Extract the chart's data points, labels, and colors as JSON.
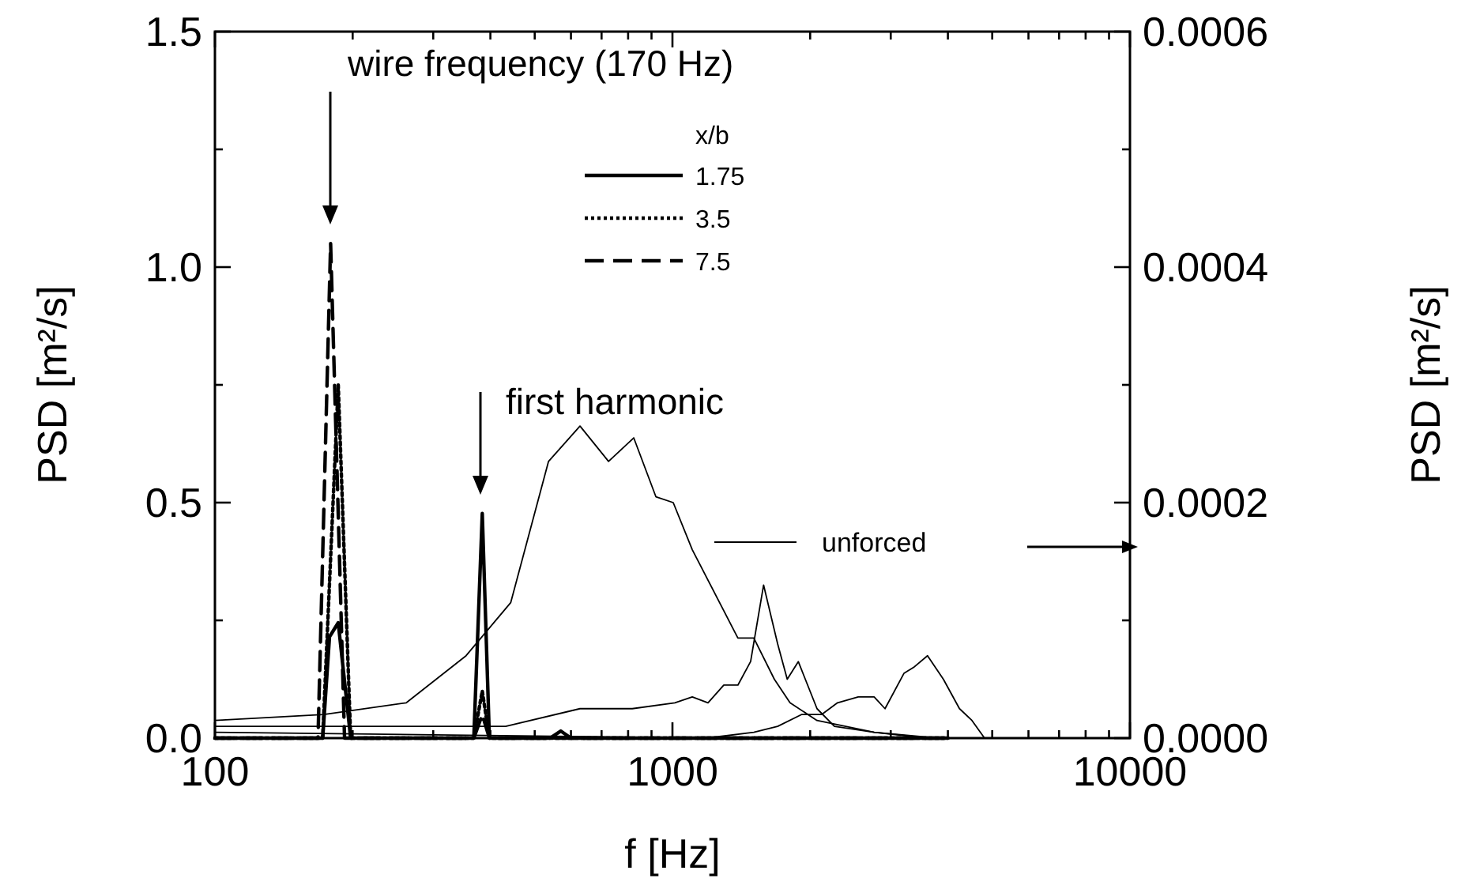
{
  "chart_data": {
    "type": "line",
    "xlabel": "f [Hz]",
    "ylabel": "PSD [m²/s]",
    "y2label": "PSD [m²/s]",
    "log": "x",
    "grid": false,
    "legend": "top",
    "legend_title": "x/b",
    "xlim": [
      100,
      10000
    ],
    "xticks": [
      100,
      {
        "value": 200,
        "label": null
      },
      {
        "value": 300,
        "label": null
      },
      {
        "value": 400,
        "label": null
      },
      {
        "value": 500,
        "label": null
      },
      {
        "value": 600,
        "label": null
      },
      {
        "value": 700,
        "label": null
      },
      {
        "value": 800,
        "label": null
      },
      {
        "value": 900,
        "label": null
      },
      1000,
      {
        "value": 2000,
        "label": null
      },
      {
        "value": 3000,
        "label": null
      },
      {
        "value": 4000,
        "label": null
      },
      {
        "value": 5000,
        "label": null
      },
      {
        "value": 6000,
        "label": null
      },
      {
        "value": 7000,
        "label": null
      },
      {
        "value": 8000,
        "label": null
      },
      {
        "value": 9000,
        "label": null
      },
      10000
    ],
    "ylim": [
      0,
      1.5
    ],
    "yticks": [
      {
        "value": 0,
        "label": "0.0"
      },
      {
        "value": 0.25,
        "label": null
      },
      {
        "value": 0.5,
        "label": "0.5"
      },
      {
        "value": 0.75,
        "label": null
      },
      {
        "value": 1,
        "label": "1.0"
      },
      {
        "value": 1.25,
        "label": null
      },
      {
        "value": 1.5,
        "label": "1.5"
      }
    ],
    "y2lim": [
      0,
      0.0006
    ],
    "y2ticks": [
      {
        "value": 0,
        "label": "0.0000"
      },
      {
        "value": 0.0001,
        "label": null
      },
      {
        "value": 0.0002,
        "label": "0.0002"
      },
      {
        "value": 0.0003,
        "label": null
      },
      {
        "value": 0.0004,
        "label": "0.0004"
      },
      {
        "value": 0.0005,
        "label": null
      },
      {
        "value": 0.0006,
        "label": "0.0006"
      }
    ],
    "annotations": [
      "wire frequency (170 Hz)",
      "first harmonic",
      "unforced"
    ],
    "series": [
      {
        "name": "1.75",
        "color": "#000000",
        "line_style": "solid",
        "x": [
          100,
          172,
          178,
          186,
          198,
          368,
          384,
          398,
          540,
          570,
          600,
          4000
        ],
        "values": [
          0,
          0,
          0.215,
          0.245,
          0,
          0,
          0.477,
          0,
          0,
          0.015,
          0,
          0
        ]
      },
      {
        "name": "3.5",
        "color": "#000000",
        "line_style": "dotted",
        "x": [
          100,
          172,
          186,
          198,
          368,
          384,
          398,
          4000
        ],
        "values": [
          0,
          0,
          0.75,
          0,
          0,
          0.1,
          0,
          0
        ]
      },
      {
        "name": "7.5",
        "color": "#000000",
        "line_style": "dashed",
        "x": [
          100,
          168,
          179,
          192,
          368,
          384,
          398,
          4000
        ],
        "values": [
          0,
          0,
          1.05,
          0,
          0,
          0.05,
          0,
          0
        ]
      },
      {
        "axis": "y2",
        "color": "#000000",
        "line_style": "solid",
        "x": [
          100,
          173,
          262,
          354,
          443,
          536,
          628,
          725,
          823,
          920,
          1004,
          1105,
          1390,
          1506,
          1670,
          1807,
          2070,
          2760,
          3790
        ],
        "values": [
          1.5e-05,
          2e-05,
          3e-05,
          7e-05,
          0.000115,
          0.000235,
          0.000265,
          0.000235,
          0.000255,
          0.000205,
          0.0002,
          0.00016,
          8.5e-05,
          8.5e-05,
          5e-05,
          3e-05,
          1.5e-05,
          5e-06,
          0
        ]
      },
      {
        "axis": "y2",
        "color": "#000000",
        "line_style": "solid",
        "x": [
          100,
          432,
          628,
          817,
          1012,
          1105,
          1196,
          1295,
          1390,
          1482,
          1582,
          1698,
          1782,
          1884,
          2070,
          2260,
          2760,
          3610
        ],
        "values": [
          1e-05,
          1e-05,
          2.5e-05,
          2.5e-05,
          3e-05,
          3.5e-05,
          3e-05,
          4.5e-05,
          4.5e-05,
          6.5e-05,
          0.00013,
          8e-05,
          5e-05,
          6.5e-05,
          2.5e-05,
          1e-05,
          5e-06,
          0
        ]
      },
      {
        "axis": "y2",
        "color": "#000000",
        "line_style": "solid",
        "x": [
          100,
          1187,
          1506,
          1698,
          1914,
          2118,
          2295,
          2547,
          2760,
          2915,
          3206,
          3365,
          3610,
          3910,
          4240,
          4515,
          4810
        ],
        "values": [
          5e-06,
          0,
          5e-06,
          1e-05,
          2e-05,
          2e-05,
          3e-05,
          3.5e-05,
          3.5e-05,
          2.5e-05,
          5.5e-05,
          6e-05,
          7e-05,
          5e-05,
          2.5e-05,
          1.5e-05,
          0
        ]
      }
    ]
  }
}
